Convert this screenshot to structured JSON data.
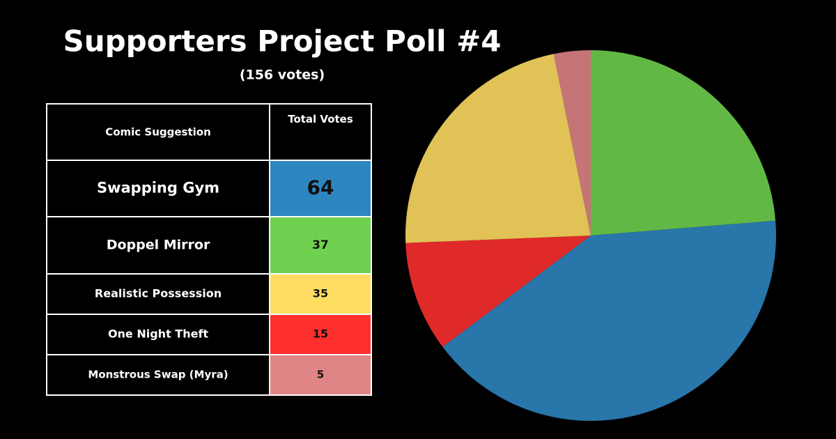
{
  "chart_data": {
    "type": "pie",
    "title": "Supporters Project Poll #4",
    "subtitle": "(156 votes)",
    "table_headers": [
      "Comic Suggestion",
      "Total Votes"
    ],
    "categories": [
      "Swapping Gym",
      "Doppel Mirror",
      "Realistic Possession",
      "One Night Theft",
      "Monstrous Swap (Myra)"
    ],
    "values": [
      64,
      37,
      35,
      15,
      5
    ],
    "colors": [
      "#2e86c1",
      "#6fd14f",
      "#ffdd63",
      "#ff2f2f",
      "#e08585"
    ]
  }
}
